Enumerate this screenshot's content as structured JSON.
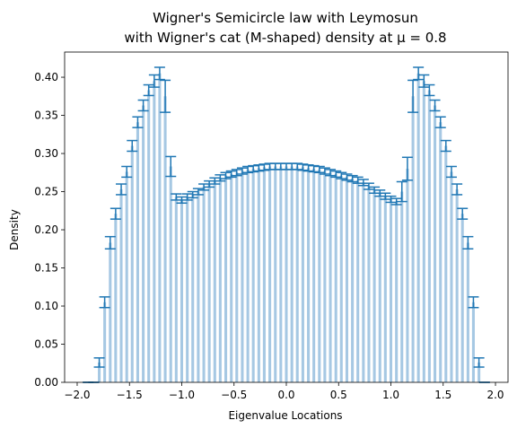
{
  "chart_data": {
    "type": "bar",
    "title_line1": "Wigner's Semicircle law with Leymosun",
    "title_line2": "with Wigner's cat (M-shaped) density at μ = 0.8",
    "xlabel": "Eigenvalue Locations",
    "ylabel": "Density",
    "xlim": [
      -2.12,
      2.12
    ],
    "ylim": [
      0,
      0.433
    ],
    "xticks": [
      "-2.0",
      "-1.5",
      "-1.0",
      "-0.5",
      "0.0",
      "0.5",
      "1.0",
      "1.5",
      "2.0"
    ],
    "yticks": [
      "0.00",
      "0.05",
      "0.10",
      "0.15",
      "0.20",
      "0.25",
      "0.30",
      "0.35",
      "0.40"
    ],
    "bar_color": "#a6c8e3",
    "errorbar_color": "#1f77b4",
    "grid": false,
    "legend": "none",
    "bin_width": 0.0526,
    "x": [
      -2.0,
      -1.947,
      -1.895,
      -1.842,
      -1.789,
      -1.737,
      -1.684,
      -1.632,
      -1.579,
      -1.526,
      -1.474,
      -1.421,
      -1.368,
      -1.316,
      -1.263,
      -1.211,
      -1.158,
      -1.105,
      -1.053,
      -1.0,
      -0.947,
      -0.895,
      -0.842,
      -0.789,
      -0.737,
      -0.684,
      -0.632,
      -0.579,
      -0.526,
      -0.474,
      -0.421,
      -0.368,
      -0.316,
      -0.263,
      -0.211,
      -0.158,
      -0.105,
      -0.053,
      0.0,
      0.053,
      0.105,
      0.158,
      0.211,
      0.263,
      0.316,
      0.368,
      0.421,
      0.474,
      0.526,
      0.579,
      0.632,
      0.684,
      0.737,
      0.789,
      0.842,
      0.895,
      0.947,
      1.0,
      1.053,
      1.105,
      1.158,
      1.211,
      1.263,
      1.316,
      1.368,
      1.421,
      1.474,
      1.526,
      1.579,
      1.632,
      1.684,
      1.737,
      1.789,
      1.842,
      1.895,
      1.947,
      2.0
    ],
    "values": [
      0.0,
      0.0,
      0.0,
      0.0,
      0.026,
      0.105,
      0.183,
      0.221,
      0.253,
      0.276,
      0.31,
      0.341,
      0.363,
      0.383,
      0.395,
      0.405,
      0.375,
      0.283,
      0.243,
      0.239,
      0.243,
      0.246,
      0.25,
      0.256,
      0.26,
      0.264,
      0.268,
      0.271,
      0.273,
      0.275,
      0.277,
      0.279,
      0.28,
      0.281,
      0.282,
      0.283,
      0.283,
      0.283,
      0.283,
      0.283,
      0.283,
      0.282,
      0.281,
      0.28,
      0.279,
      0.277,
      0.275,
      0.273,
      0.271,
      0.269,
      0.267,
      0.265,
      0.262,
      0.257,
      0.252,
      0.248,
      0.244,
      0.24,
      0.237,
      0.25,
      0.28,
      0.375,
      0.405,
      0.395,
      0.383,
      0.363,
      0.341,
      0.31,
      0.276,
      0.253,
      0.221,
      0.183,
      0.105,
      0.026,
      0.0,
      0.0,
      0.0
    ],
    "errors": [
      0.0,
      0.0,
      0.0,
      0.0,
      0.006,
      0.007,
      0.008,
      0.007,
      0.007,
      0.007,
      0.007,
      0.007,
      0.007,
      0.007,
      0.008,
      0.008,
      0.021,
      0.013,
      0.004,
      0.004,
      0.004,
      0.004,
      0.004,
      0.004,
      0.004,
      0.004,
      0.004,
      0.004,
      0.004,
      0.004,
      0.004,
      0.004,
      0.004,
      0.004,
      0.004,
      0.004,
      0.004,
      0.004,
      0.004,
      0.004,
      0.004,
      0.004,
      0.004,
      0.004,
      0.004,
      0.004,
      0.004,
      0.004,
      0.004,
      0.004,
      0.004,
      0.004,
      0.004,
      0.004,
      0.004,
      0.004,
      0.004,
      0.004,
      0.004,
      0.013,
      0.015,
      0.021,
      0.008,
      0.008,
      0.007,
      0.007,
      0.007,
      0.007,
      0.007,
      0.007,
      0.007,
      0.008,
      0.007,
      0.006,
      0.0,
      0.0,
      0.0
    ]
  }
}
